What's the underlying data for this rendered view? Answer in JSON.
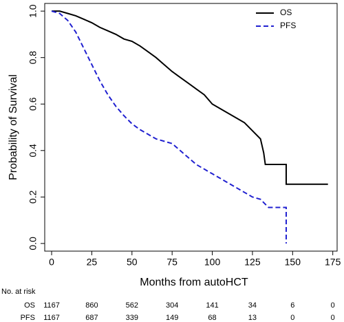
{
  "chart_data": {
    "type": "line",
    "xlabel": "Months from autoHCT",
    "ylabel": "Probability of Survival",
    "xlim": [
      -4.3,
      177.7
    ],
    "ylim": [
      -0.033,
      1.033
    ],
    "xticks": [
      0,
      25,
      50,
      75,
      100,
      125,
      150,
      175
    ],
    "yticks": [
      {
        "value": 0,
        "label": "0.0"
      },
      0.2,
      0.4,
      0.6,
      0.8,
      {
        "value": 1,
        "label": "1.0"
      }
    ],
    "legend": "topright",
    "series": [
      {
        "name": "OS",
        "color": "#000000",
        "dash": false,
        "x": [
          0,
          5,
          10,
          15,
          20,
          25,
          30,
          35,
          40,
          45,
          50,
          55,
          60,
          65,
          70,
          75,
          80,
          85,
          90,
          95,
          100,
          105,
          110,
          115,
          120,
          125,
          130,
          132,
          133,
          146,
          146,
          172
        ],
        "values": [
          1.0,
          1.0,
          0.99,
          0.98,
          0.965,
          0.95,
          0.93,
          0.915,
          0.9,
          0.88,
          0.87,
          0.85,
          0.825,
          0.8,
          0.77,
          0.74,
          0.715,
          0.69,
          0.665,
          0.64,
          0.6,
          0.58,
          0.56,
          0.54,
          0.52,
          0.485,
          0.45,
          0.39,
          0.34,
          0.34,
          0.255,
          0.255
        ]
      },
      {
        "name": "PFS",
        "color": "#2020d0",
        "dash": true,
        "x": [
          0,
          5,
          10,
          15,
          20,
          25,
          30,
          35,
          40,
          45,
          50,
          55,
          60,
          65,
          70,
          75,
          80,
          85,
          90,
          95,
          100,
          105,
          110,
          115,
          120,
          125,
          130,
          135,
          146,
          146
        ],
        "values": [
          1.0,
          0.99,
          0.96,
          0.91,
          0.84,
          0.77,
          0.7,
          0.64,
          0.59,
          0.55,
          0.515,
          0.49,
          0.47,
          0.45,
          0.44,
          0.43,
          0.4,
          0.37,
          0.34,
          0.32,
          0.3,
          0.28,
          0.26,
          0.24,
          0.22,
          0.2,
          0.19,
          0.155,
          0.155,
          0.0
        ]
      }
    ],
    "risk_table": {
      "title": "No. at risk",
      "rows": [
        {
          "label": "OS",
          "counts": [
            1167,
            860,
            562,
            304,
            141,
            34,
            6,
            0
          ]
        },
        {
          "label": "PFS",
          "counts": [
            1167,
            687,
            339,
            149,
            68,
            13,
            0,
            0
          ]
        }
      ]
    }
  }
}
